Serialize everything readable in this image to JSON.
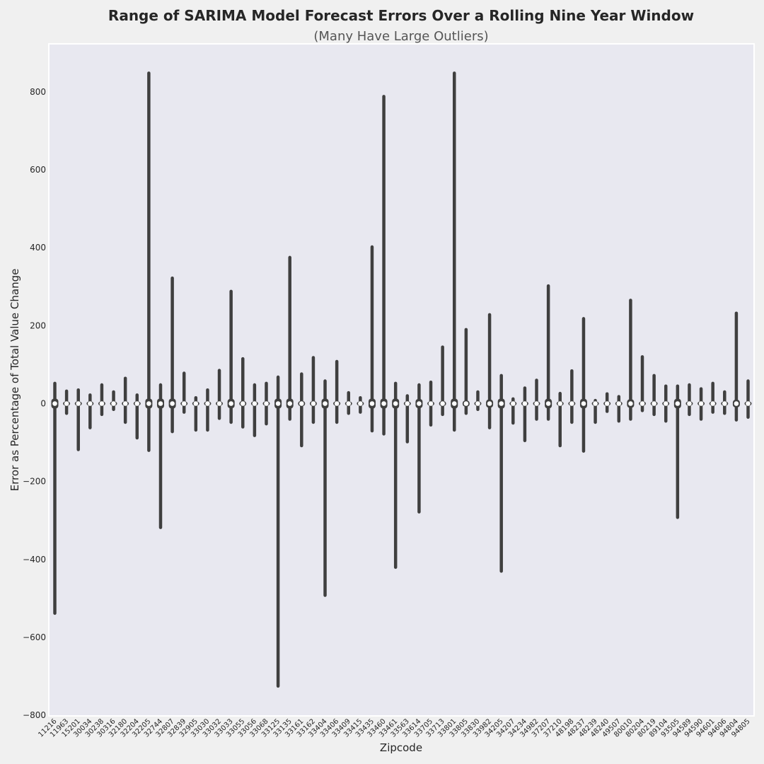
{
  "chart_data": {
    "type": "violin",
    "title": "Range of SARIMA Model Forecast Errors Over a Rolling Nine Year Window",
    "subtitle": "(Many Have Large Outliers)",
    "xlabel": "Zipcode",
    "ylabel": "Error as Percentage of Total Value Change",
    "ylim": [
      -800,
      920
    ],
    "yticks": [
      -800,
      -600,
      -400,
      -200,
      0,
      200,
      400,
      600,
      800
    ],
    "grid": false,
    "colors": {
      "line": "#3f3f3f",
      "plot_bg": "#e8e8f0",
      "median": "#ffffff"
    },
    "categories": [
      "11216",
      "11963",
      "15201",
      "30034",
      "30238",
      "30316",
      "32180",
      "32204",
      "32205",
      "32744",
      "32807",
      "32839",
      "32905",
      "33030",
      "33032",
      "33033",
      "33055",
      "33056",
      "33068",
      "33125",
      "33135",
      "33161",
      "33162",
      "33404",
      "33406",
      "33409",
      "33415",
      "33435",
      "33460",
      "33461",
      "33563",
      "33614",
      "33705",
      "33713",
      "33801",
      "33805",
      "33830",
      "33982",
      "34205",
      "34207",
      "34234",
      "34982",
      "37207",
      "37210",
      "48198",
      "48237",
      "48239",
      "48240",
      "49507",
      "80010",
      "80204",
      "80219",
      "89104",
      "93505",
      "94589",
      "94590",
      "94601",
      "94606",
      "94804",
      "94805"
    ],
    "series": [
      {
        "min": [
          -538,
          -25,
          -118,
          -62,
          -28,
          -15,
          -48,
          -88,
          -120,
          -318,
          -72,
          -22,
          -68,
          -68,
          -38,
          -48,
          -60,
          -82,
          -52,
          -725,
          -40,
          -108,
          -48,
          -492,
          -48,
          -25,
          -22,
          -70,
          -78,
          -420,
          -98,
          -278,
          -55,
          -28,
          -68,
          -25,
          -15,
          -62,
          -430,
          -50,
          -95,
          -40,
          -40,
          -108,
          -48,
          -122,
          -48,
          -20,
          -45,
          -40,
          -18,
          -28,
          -45,
          -292,
          -28,
          -40,
          -22,
          -25,
          -42,
          -35
        ],
        "max": [
          52,
          32,
          35,
          22,
          48,
          30,
          65,
          22,
          848,
          48,
          322,
          78,
          15,
          35,
          85,
          288,
          115,
          48,
          52,
          68,
          375,
          76,
          118,
          58,
          108,
          28,
          15,
          402,
          788,
          52,
          20,
          48,
          55,
          145,
          848,
          190,
          30,
          228,
          72,
          12,
          40,
          60,
          302,
          26,
          84,
          218,
          8,
          25,
          18,
          265,
          120,
          72,
          45,
          45,
          48,
          38,
          52,
          30,
          232,
          58
        ]
      }
    ]
  }
}
